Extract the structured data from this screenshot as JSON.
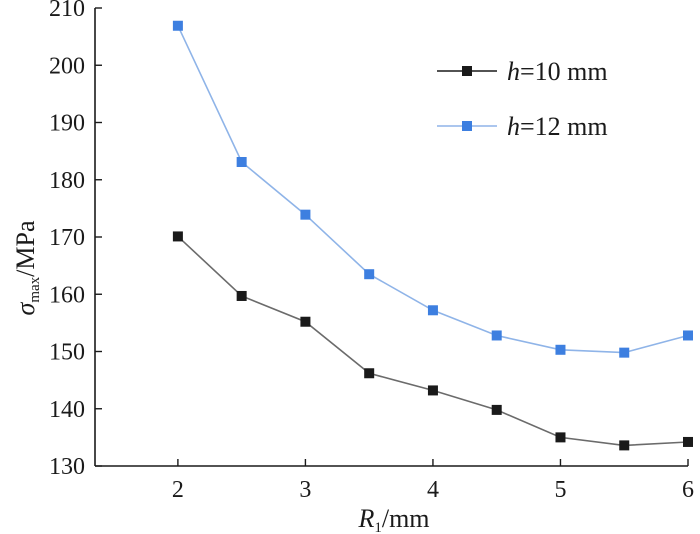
{
  "chart_data": {
    "type": "line",
    "title": "",
    "xlabel": {
      "symbol": "R",
      "subscript": "1",
      "unit": "/mm"
    },
    "ylabel": {
      "symbol": "σ",
      "subscript": "max",
      "unit": "/MPa"
    },
    "xlim": [
      1.35,
      6.0
    ],
    "ylim": [
      130,
      210
    ],
    "xticks": [
      2,
      3,
      4,
      5,
      6
    ],
    "xtick_labels": [
      "2",
      "3",
      "4",
      "5",
      "6"
    ],
    "yticks": [
      130,
      140,
      150,
      160,
      170,
      180,
      190,
      200,
      210
    ],
    "ytick_labels": [
      "130",
      "140",
      "150",
      "160",
      "170",
      "180",
      "190",
      "200",
      "210"
    ],
    "x": [
      2,
      2.5,
      3,
      3.5,
      4,
      4.5,
      5,
      5.5,
      6
    ],
    "series": [
      {
        "name": "h=10 mm",
        "label_var": "h",
        "label_rest": "=10 mm",
        "color": "#1a1a1a",
        "line_color": "#6b6b6b",
        "values": [
          170.1,
          159.7,
          155.2,
          146.2,
          143.2,
          139.8,
          135.0,
          133.6,
          134.2
        ]
      },
      {
        "name": "h=12 mm",
        "label_var": "h",
        "label_rest": "=12 mm",
        "color": "#3d7fe0",
        "line_color": "#8fb4e8",
        "values": [
          206.9,
          183.1,
          173.9,
          163.5,
          157.2,
          152.8,
          150.3,
          149.8,
          152.8
        ]
      }
    ],
    "legend_position": "top-right",
    "grid": false
  }
}
